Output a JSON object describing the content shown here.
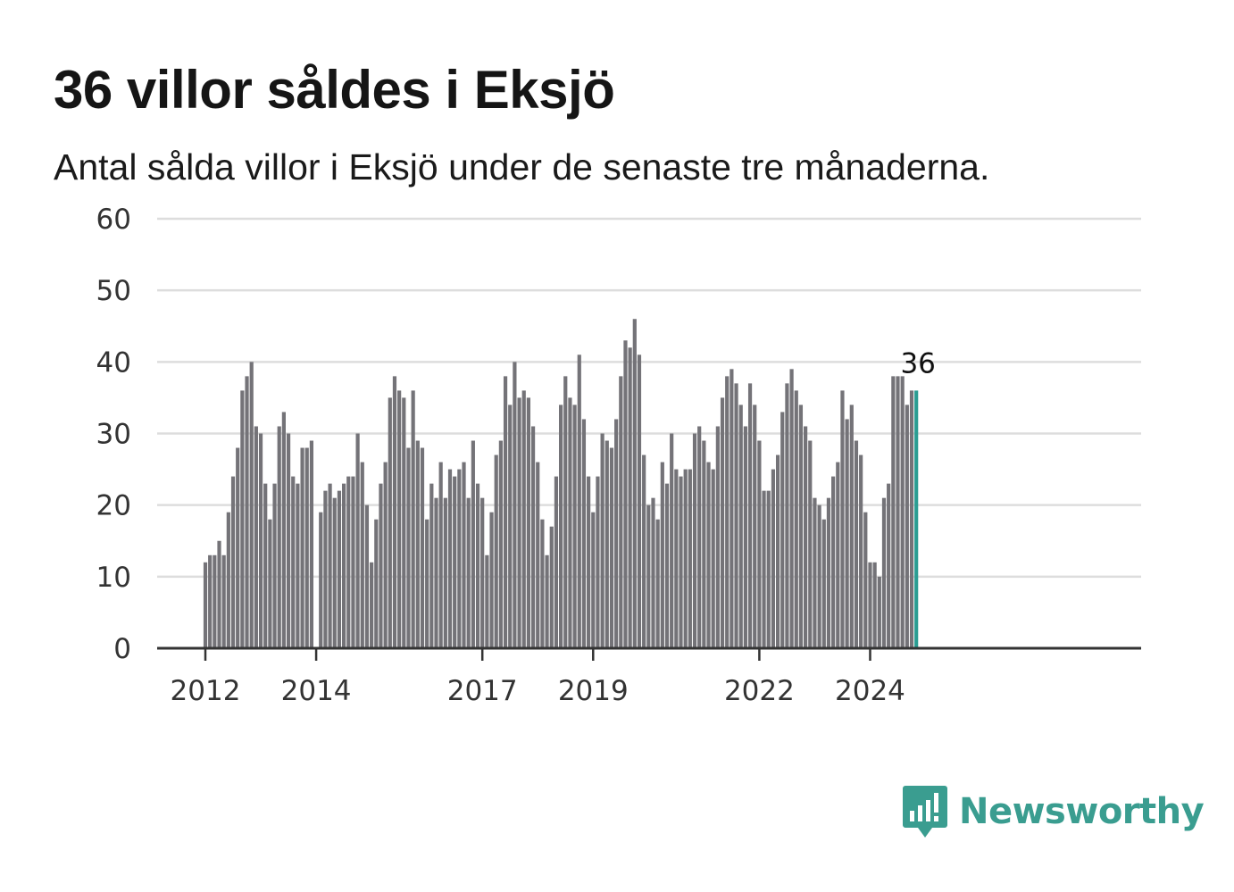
{
  "header": {
    "title": "36 villor såldes i Eksjö",
    "subtitle": "Antal sålda villor i Eksjö under de senaste tre månaderna."
  },
  "brand": {
    "name": "Newsworthy",
    "logo_icon": "newsworthy-chart-icon"
  },
  "colors": {
    "bar": "#747378",
    "highlight": "#2a9d92",
    "grid": "#dddddd",
    "axis": "#333333",
    "brand": "#3a9d90"
  },
  "chart_data": {
    "type": "bar",
    "title": "36 villor såldes i Eksjö",
    "subtitle": "Antal sålda villor i Eksjö under de senaste tre månaderna.",
    "xlabel": "",
    "ylabel": "",
    "ylim": [
      0,
      60
    ],
    "yticks": [
      "0",
      "10",
      "20",
      "30",
      "40",
      "50",
      "60"
    ],
    "xticks": [
      {
        "label": "2012",
        "index": 0
      },
      {
        "label": "2014",
        "index": 24
      },
      {
        "label": "2017",
        "index": 60
      },
      {
        "label": "2019",
        "index": 84
      },
      {
        "label": "2022",
        "index": 120
      },
      {
        "label": "2024",
        "index": 144
      }
    ],
    "grid": true,
    "series": [
      {
        "values": [
          12,
          13,
          13,
          15,
          13,
          19,
          24,
          28,
          36,
          38,
          40,
          31,
          30,
          23,
          18,
          23,
          31,
          33,
          30,
          24,
          23,
          28,
          28,
          29,
          null,
          19,
          22,
          23,
          21,
          22,
          23,
          24,
          24,
          30,
          26,
          20,
          12,
          18,
          23,
          26,
          35,
          38,
          36,
          35,
          28,
          36,
          29,
          28,
          18,
          23,
          21,
          26,
          21,
          25,
          24,
          25,
          26,
          21,
          29,
          23,
          21,
          13,
          19,
          27,
          29,
          38,
          34,
          40,
          35,
          36,
          35,
          31,
          26,
          18,
          13,
          17,
          24,
          34,
          38,
          35,
          34,
          41,
          32,
          24,
          19,
          24,
          30,
          29,
          28,
          32,
          38,
          43,
          42,
          46,
          41,
          27,
          20,
          21,
          18,
          26,
          23,
          30,
          25,
          24,
          25,
          25,
          30,
          31,
          29,
          26,
          25,
          31,
          35,
          38,
          39,
          37,
          34,
          31,
          37,
          34,
          29,
          22,
          22,
          25,
          27,
          33,
          37,
          39,
          36,
          34,
          31,
          29,
          21,
          20,
          18,
          21,
          24,
          26,
          36,
          32,
          34,
          29,
          27,
          19,
          12,
          12,
          10,
          21,
          23,
          38,
          38,
          38,
          34,
          36,
          36
        ]
      }
    ],
    "highlight_last": 1,
    "annotation": {
      "label": "36",
      "index": 154
    }
  }
}
